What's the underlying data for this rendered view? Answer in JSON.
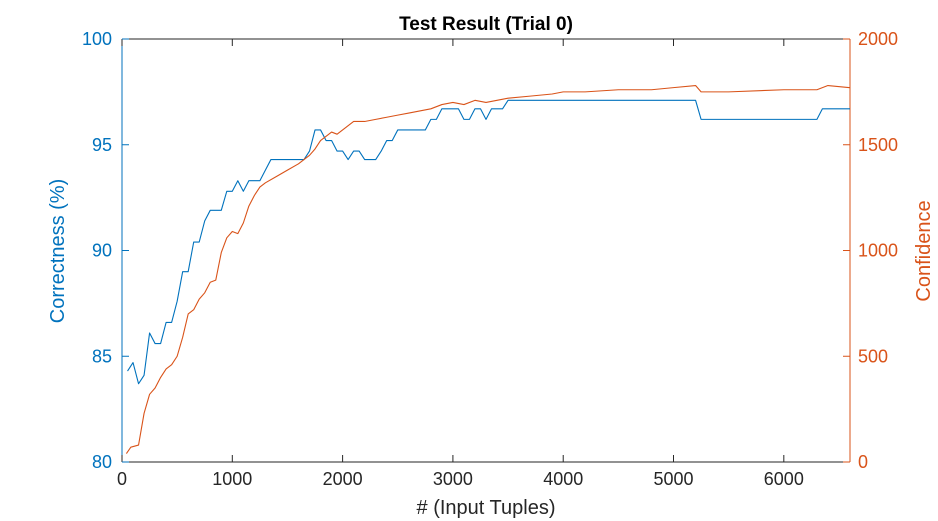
{
  "chart_data": {
    "type": "line",
    "title": "Test Result (Trial 0)",
    "xlabel": "# (Input Tuples)",
    "ylabel_left": "Correctness (%)",
    "ylabel_right": "Confidence",
    "xlim": [
      0,
      6600
    ],
    "ylim_left": [
      80,
      100
    ],
    "ylim_right": [
      0,
      2000
    ],
    "x_ticks": [
      0,
      1000,
      2000,
      3000,
      4000,
      5000,
      6000
    ],
    "y_ticks_left": [
      80,
      85,
      90,
      95,
      100
    ],
    "y_ticks_right": [
      0,
      500,
      1000,
      1500,
      2000
    ],
    "grid": false,
    "colors": {
      "left_axis": "#0072bd",
      "right_axis": "#d95319",
      "frame": "#262626"
    },
    "series": [
      {
        "axis": "left",
        "color": "#0072bd",
        "x": [
          50,
          100,
          150,
          200,
          250,
          300,
          350,
          400,
          450,
          500,
          550,
          600,
          650,
          700,
          750,
          800,
          850,
          900,
          950,
          1000,
          1050,
          1100,
          1150,
          1200,
          1250,
          1300,
          1350,
          1400,
          1450,
          1500,
          1550,
          1600,
          1650,
          1700,
          1750,
          1800,
          1850,
          1900,
          1950,
          2000,
          2050,
          2100,
          2150,
          2200,
          2250,
          2300,
          2350,
          2400,
          2450,
          2500,
          2550,
          2600,
          2650,
          2700,
          2750,
          2800,
          2850,
          2900,
          2950,
          3000,
          3050,
          3100,
          3150,
          3200,
          3250,
          3300,
          3350,
          3400,
          3450,
          3500,
          3600,
          3800,
          4000,
          4500,
          5000,
          5200,
          5250,
          5500,
          6000,
          6300,
          6350,
          6600
        ],
        "values": [
          84.3,
          84.7,
          83.7,
          84.1,
          86.1,
          85.6,
          85.6,
          86.6,
          86.6,
          87.6,
          89.0,
          89.0,
          90.4,
          90.4,
          91.4,
          91.9,
          91.9,
          91.9,
          92.8,
          92.8,
          93.3,
          92.8,
          93.3,
          93.3,
          93.3,
          93.8,
          94.3,
          94.3,
          94.3,
          94.3,
          94.3,
          94.3,
          94.3,
          94.7,
          95.7,
          95.7,
          95.2,
          95.2,
          94.7,
          94.7,
          94.3,
          94.7,
          94.7,
          94.3,
          94.3,
          94.3,
          94.7,
          95.2,
          95.2,
          95.7,
          95.7,
          95.7,
          95.7,
          95.7,
          95.7,
          96.2,
          96.2,
          96.7,
          96.7,
          96.7,
          96.7,
          96.2,
          96.2,
          96.7,
          96.7,
          96.2,
          96.7,
          96.7,
          96.7,
          97.1,
          97.1,
          97.1,
          97.1,
          97.1,
          97.1,
          97.1,
          96.2,
          96.2,
          96.2,
          96.2,
          96.7,
          96.7
        ]
      },
      {
        "axis": "right",
        "color": "#d95319",
        "x": [
          40,
          80,
          150,
          200,
          250,
          300,
          350,
          400,
          450,
          500,
          550,
          600,
          650,
          700,
          750,
          800,
          850,
          900,
          950,
          1000,
          1050,
          1100,
          1150,
          1200,
          1250,
          1300,
          1400,
          1500,
          1600,
          1700,
          1750,
          1800,
          1850,
          1900,
          1950,
          2000,
          2050,
          2100,
          2200,
          2300,
          2400,
          2500,
          2600,
          2700,
          2800,
          2900,
          3000,
          3100,
          3200,
          3300,
          3400,
          3500,
          3700,
          3900,
          4000,
          4200,
          4500,
          4800,
          5000,
          5200,
          5250,
          5500,
          6000,
          6300,
          6400,
          6600
        ],
        "values": [
          40,
          70,
          80,
          230,
          320,
          350,
          400,
          440,
          460,
          500,
          590,
          700,
          720,
          770,
          800,
          850,
          860,
          990,
          1060,
          1090,
          1080,
          1130,
          1210,
          1260,
          1300,
          1320,
          1350,
          1380,
          1410,
          1450,
          1480,
          1520,
          1540,
          1560,
          1550,
          1570,
          1590,
          1610,
          1610,
          1620,
          1630,
          1640,
          1650,
          1660,
          1670,
          1690,
          1700,
          1690,
          1710,
          1700,
          1710,
          1720,
          1730,
          1740,
          1750,
          1750,
          1760,
          1760,
          1770,
          1780,
          1750,
          1750,
          1760,
          1760,
          1780,
          1770
        ]
      }
    ]
  }
}
